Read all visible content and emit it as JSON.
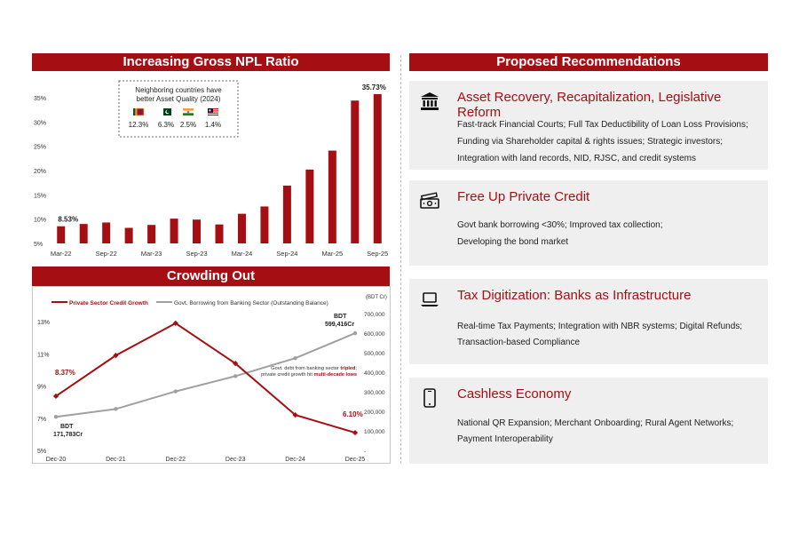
{
  "npl": {
    "title": "Increasing Gross NPL Ratio",
    "inset_title": [
      "Neighboring countries have",
      "better Asset Quality (2024)"
    ],
    "inset_values": [
      "12.3%",
      "6.3%",
      "2.5%",
      "1.4%"
    ],
    "inset_flags": [
      "sri-lanka-flag-icon",
      "pakistan-flag-icon",
      "india-flag-icon",
      "malaysia-flag-icon"
    ]
  },
  "crowding": {
    "title": "Crowding Out",
    "legend_credit": "Private Sector Credit Growth",
    "legend_borrow": "Govt. Borrowing from Banking Sector (Outstanding Balance)",
    "bdt_cr": "(BDT Cr)",
    "label_start_pct": "8.37%",
    "label_end_pct": "6.10%",
    "label_start_bdt": [
      "BDT",
      "171,783Cr"
    ],
    "label_end_bdt": [
      "BDT",
      "599,416Cr"
    ],
    "annotation_line1_pre": "Govt. debt from banking sector ",
    "annotation_line1_em": "tripled",
    "annotation_line1_post": ";",
    "annotation_line2_pre": "private credit growth hit ",
    "annotation_line2_em": "multi-decade lows"
  },
  "recommendations": {
    "title": "Proposed Recommendations",
    "cards": [
      {
        "icon": "bank-building-icon",
        "title": "Asset Recovery, Recapitalization, Legislative Reform",
        "lines": [
          "Fast-track Financial Courts; Full Tax Deductibility of Loan Loss Provisions;",
          "Funding via Shareholder capital & rights issues; Strategic investors;",
          "Integration with land records, NID, RJSC, and credit systems"
        ]
      },
      {
        "icon": "cash-icon",
        "title": "Free Up Private Credit",
        "lines": [
          "Govt bank borrowing <30%; Improved tax collection;",
          "Developing the bond market"
        ]
      },
      {
        "icon": "laptop-icon",
        "title": "Tax Digitization: Banks as Infrastructure",
        "lines": [
          "Real-time Tax Payments; Integration with NBR systems; Digital Refunds;",
          "Transaction-based Compliance"
        ]
      },
      {
        "icon": "smartphone-icon",
        "title": "Cashless Economy",
        "lines": [
          "National QR Expansion; Merchant Onboarding; Rural Agent Networks;",
          "Payment Interoperability"
        ]
      }
    ]
  },
  "chart_data": [
    {
      "type": "bar",
      "title": "Increasing Gross NPL Ratio",
      "categories": [
        "Mar-22",
        "",
        "Sep-22",
        "",
        "Mar-23",
        "",
        "Sep-23",
        "",
        "Mar-24",
        "",
        "Sep-24",
        "",
        "Mar-25",
        "",
        "Sep-25"
      ],
      "values": [
        8.53,
        9.0,
        9.3,
        8.2,
        8.8,
        10.1,
        9.9,
        8.9,
        11.1,
        12.6,
        16.9,
        20.2,
        24.1,
        34.4,
        35.73
      ],
      "data_labels": {
        "first": "8.53%",
        "last": "35.73%"
      },
      "yticks": [
        "5%",
        "10%",
        "15%",
        "20%",
        "25%",
        "30%",
        "35%"
      ],
      "ylim": [
        5,
        37
      ],
      "inset": {
        "countries": [
          "Sri Lanka",
          "Pakistan",
          "India",
          "Malaysia"
        ],
        "values": [
          12.3,
          6.3,
          2.5,
          1.4
        ]
      }
    },
    {
      "type": "line",
      "title": "Crowding Out",
      "categories": [
        "Dec-20",
        "Dec-21",
        "Dec-22",
        "Dec-23",
        "Dec-24",
        "Dec-25"
      ],
      "series": [
        {
          "name": "Private Sector Credit Growth",
          "axis": "left",
          "color": "#a50f14",
          "values": [
            8.37,
            10.9,
            12.9,
            10.4,
            7.2,
            6.1
          ]
        },
        {
          "name": "Govt. Borrowing from Banking Sector (Outstanding Balance)",
          "axis": "right",
          "color": "#a0a0a0",
          "values": [
            171783,
            212000,
            302000,
            380000,
            472000,
            599416
          ]
        }
      ],
      "yticks_left": [
        "5%",
        "7%",
        "9%",
        "11%",
        "13%"
      ],
      "ylim_left": [
        5,
        13.5
      ],
      "yticks_right": [
        "-",
        "100,000",
        "200,000",
        "300,000",
        "400,000",
        "500,000",
        "600,000",
        "700,000"
      ],
      "ylim_right": [
        0,
        700000
      ]
    }
  ]
}
